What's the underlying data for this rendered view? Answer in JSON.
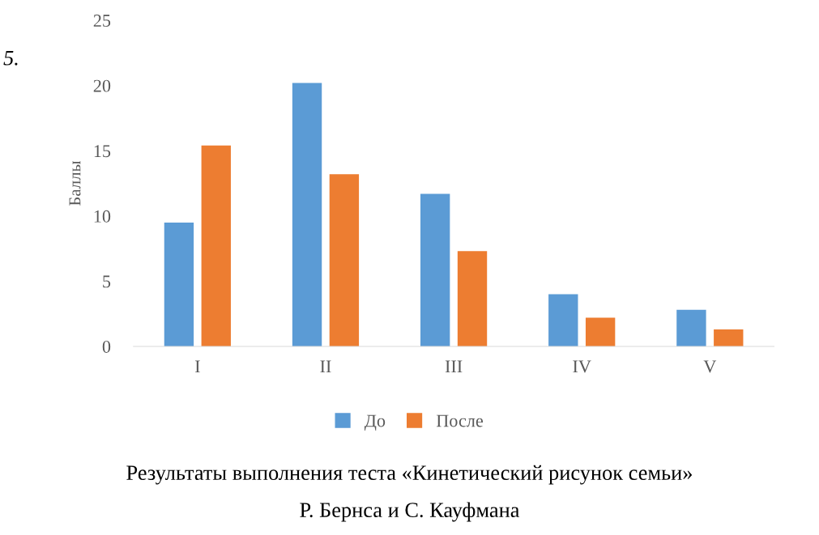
{
  "chart_data": {
    "type": "bar",
    "title": "Результаты выполнения теста «Кинетический рисунок семьи»\nР. Бернса и С. Кауфмана",
    "ylabel": "Баллы",
    "annotations": [
      "5."
    ],
    "categories": [
      "I",
      "II",
      "III",
      "IV",
      "V"
    ],
    "series": [
      {
        "name": "До",
        "color": "#5b9bd5",
        "values": [
          9.5,
          20.2,
          11.7,
          4.0,
          2.8
        ]
      },
      {
        "name": "После",
        "color": "#ed7d31",
        "values": [
          15.4,
          13.2,
          7.3,
          2.2,
          1.3
        ]
      }
    ],
    "ylim": [
      0,
      25
    ],
    "yticks": [
      0,
      5,
      10,
      15,
      20,
      25
    ],
    "grid": false,
    "legend": "bottom"
  }
}
